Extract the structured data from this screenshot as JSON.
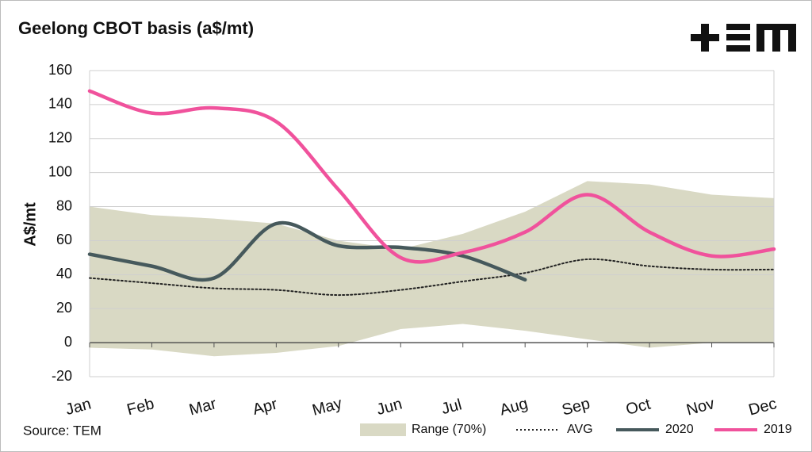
{
  "chart_data": {
    "type": "line",
    "title": "Geelong CBOT basis (a$/mt)",
    "y_label": "A$/mt",
    "source": "Source: TEM",
    "categories": [
      "Jan",
      "Feb",
      "Mar",
      "Apr",
      "May",
      "Jun",
      "Jul",
      "Aug",
      "Sep",
      "Oct",
      "Nov",
      "Dec"
    ],
    "ylim": [
      -20,
      160
    ],
    "yticks": [
      -20,
      0,
      20,
      40,
      60,
      80,
      100,
      120,
      140,
      160
    ],
    "grid": true,
    "range": {
      "name": "Range (70%)",
      "color": "#d9d9c4",
      "upper": [
        80,
        75,
        73,
        70,
        60,
        55,
        64,
        77,
        95,
        93,
        87,
        85
      ],
      "lower": [
        -3,
        -4,
        -8,
        -6,
        -2,
        8,
        11,
        7,
        2,
        -3,
        0,
        0
      ]
    },
    "series": [
      {
        "name": "AVG",
        "color": "#222222",
        "dotted": true,
        "values": [
          38,
          35,
          32,
          31,
          28,
          31,
          36,
          41,
          49,
          45,
          43,
          43
        ]
      },
      {
        "name": "2020",
        "color": "#46595c",
        "values": [
          52,
          45,
          38,
          70,
          57,
          56,
          51,
          37,
          null,
          null,
          null,
          null
        ]
      },
      {
        "name": "2019",
        "color": "#f0529c",
        "values": [
          148,
          135,
          138,
          130,
          90,
          50,
          53,
          65,
          87,
          65,
          51,
          55
        ]
      }
    ]
  }
}
